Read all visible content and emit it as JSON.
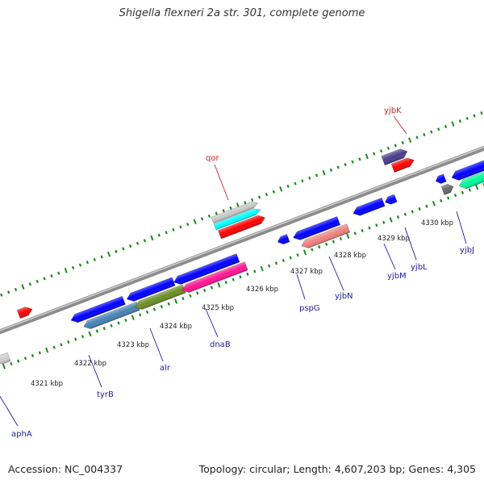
{
  "title": "Shigella flexneri 2a str. 301, complete genome",
  "footer": {
    "accession": "Accession: NC_004337",
    "summary": "Topology: circular; Length: 4,607,203 bp; Genes: 4,305"
  },
  "colors": {
    "backbone": "#8c8c8c",
    "tick": "#1e8a1e",
    "label_forward": "#cc2222",
    "label_reverse": "#1a1aa6"
  },
  "scale": {
    "unit": "kbp",
    "ticks": [
      "4321 kbp",
      "4322 kbp",
      "4323 kbp",
      "4324 kbp",
      "4325 kbp",
      "4326 kbp",
      "4327 kbp",
      "4328 kbp",
      "4329 kbp",
      "4330 kbp"
    ]
  },
  "genes": [
    {
      "id": "aphA",
      "label": "aphA",
      "strand": "reverse",
      "labeled": true
    },
    {
      "id": "tyrB",
      "label": "tyrB",
      "strand": "reverse",
      "labeled": true
    },
    {
      "id": "alr",
      "label": "alr",
      "strand": "reverse",
      "labeled": true
    },
    {
      "id": "dnaB",
      "label": "dnaB",
      "strand": "reverse",
      "labeled": true
    },
    {
      "id": "qor",
      "label": "qor",
      "strand": "forward",
      "labeled": true
    },
    {
      "id": "pspG",
      "label": "pspG",
      "strand": "reverse",
      "labeled": true
    },
    {
      "id": "yjbN",
      "label": "yjbN",
      "strand": "reverse",
      "labeled": true
    },
    {
      "id": "yjbM",
      "label": "yjbM",
      "strand": "reverse",
      "labeled": true
    },
    {
      "id": "yjbL",
      "label": "yjbL",
      "strand": "reverse",
      "labeled": true
    },
    {
      "id": "yjbK",
      "label": "yjbK",
      "strand": "forward",
      "labeled": true
    },
    {
      "id": "yjbJ",
      "label": "yjbJ",
      "strand": "reverse",
      "labeled": true
    }
  ]
}
